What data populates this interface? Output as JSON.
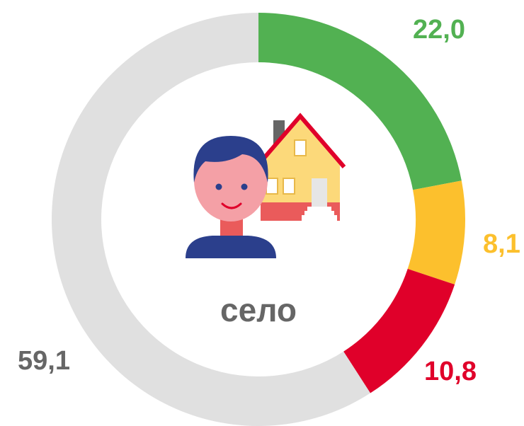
{
  "chart_data": {
    "type": "donut",
    "center_label": "село",
    "values": [
      22.0,
      8.1,
      10.8,
      59.1
    ],
    "value_labels": [
      "22,0",
      "8,1",
      "10,8",
      "59,1"
    ],
    "colors": [
      "#52b152",
      "#fcc02d",
      "#e0002a",
      "#e0e0e0"
    ],
    "label_colors": [
      "#52b152",
      "#fcc02d",
      "#e0002a",
      "#666666"
    ]
  }
}
